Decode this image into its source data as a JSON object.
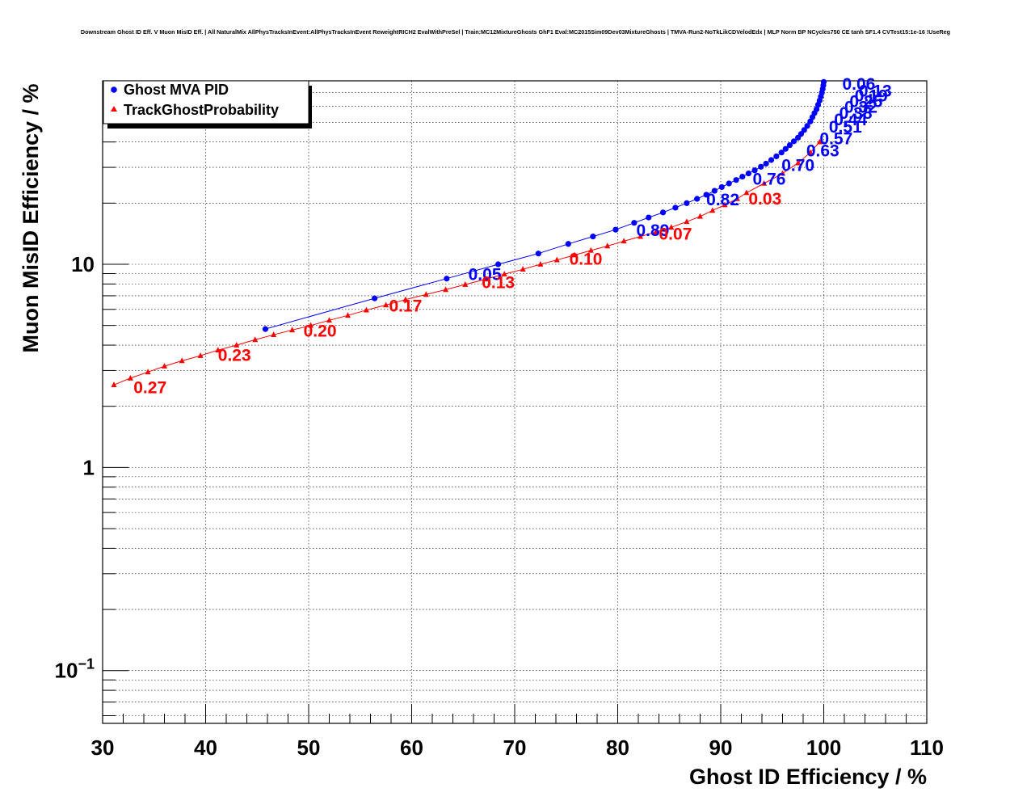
{
  "chart_data": {
    "type": "scatter",
    "title": "Downstream Ghost ID Eff. V Muon MisID Eff. | All NaturalMix AllPhysTracksInEvent:AllPhysTracksInEvent ReweightRICH2 EvalWithPreSel | Train:MC12MixtureGhosts GhF1 Eval:MC2015Sim09Dev03MixtureGhosts | TMVA-Run2-NoTkLikCDVelodEdx | MLP Norm BP NCycles750 CE tanh SF1.4 CVTest15:1e-16 !UseReg",
    "xlabel": "Ghost ID Efficiency / %",
    "ylabel": "Muon MisID Efficiency / %",
    "xlim": [
      30,
      110
    ],
    "ylim": [
      0.055,
      80
    ],
    "yscale": "log",
    "grid": true,
    "legend_position": "top-left",
    "x_ticks": [
      "30",
      "40",
      "50",
      "60",
      "70",
      "80",
      "90",
      "100",
      "110"
    ],
    "y_ticks": [
      {
        "base": "10",
        "exp": "-1",
        "value": 0.1
      },
      {
        "base": "1",
        "exp": "",
        "value": 1
      },
      {
        "base": "10",
        "exp": "",
        "value": 10
      }
    ],
    "series": [
      {
        "name": "Ghost MVA PID",
        "color": "#0000ff",
        "marker": "circle",
        "points": [
          [
            45.8,
            4.8
          ],
          [
            56.4,
            6.8
          ],
          [
            63.4,
            8.5
          ],
          [
            68.4,
            10.0
          ],
          [
            72.3,
            11.3
          ],
          [
            75.2,
            12.6
          ],
          [
            77.6,
            13.7
          ],
          [
            79.8,
            14.8
          ],
          [
            81.6,
            16.0
          ],
          [
            83.0,
            17.0
          ],
          [
            84.4,
            18.0
          ],
          [
            85.6,
            19.0
          ],
          [
            86.7,
            20.0
          ],
          [
            87.7,
            21.0
          ],
          [
            88.6,
            22.0
          ],
          [
            89.4,
            23.0
          ],
          [
            90.1,
            24.0
          ],
          [
            90.8,
            25.0
          ],
          [
            91.5,
            26.0
          ],
          [
            92.1,
            27.0
          ],
          [
            92.7,
            28.0
          ],
          [
            93.3,
            29.0
          ],
          [
            93.9,
            30.2
          ],
          [
            94.4,
            31.3
          ],
          [
            94.9,
            32.6
          ],
          [
            95.4,
            34.0
          ],
          [
            95.9,
            35.5
          ],
          [
            96.3,
            37.0
          ],
          [
            96.7,
            38.6
          ],
          [
            97.1,
            40.3
          ],
          [
            97.5,
            42.0
          ],
          [
            97.8,
            43.8
          ],
          [
            98.1,
            45.8
          ],
          [
            98.4,
            48.0
          ],
          [
            98.7,
            50.5
          ],
          [
            98.9,
            53.0
          ],
          [
            99.1,
            55.5
          ],
          [
            99.3,
            58.0
          ],
          [
            99.45,
            61.0
          ],
          [
            99.6,
            64.0
          ],
          [
            99.72,
            67.0
          ],
          [
            99.82,
            70.0
          ],
          [
            99.9,
            73.0
          ],
          [
            99.96,
            76.0
          ],
          [
            100.0,
            79.0
          ]
        ],
        "labels": [
          {
            "text": "0.05",
            "x": 65.5,
            "y": 9.0
          },
          {
            "text": "0.89",
            "x": 81.8,
            "y": 14.8
          },
          {
            "text": "0.82",
            "x": 88.6,
            "y": 21.0
          },
          {
            "text": "0.76",
            "x": 93.1,
            "y": 26.5
          },
          {
            "text": "0.70",
            "x": 95.9,
            "y": 31.0
          },
          {
            "text": "0.63",
            "x": 98.3,
            "y": 36.5
          },
          {
            "text": "0.57",
            "x": 99.6,
            "y": 42.0
          },
          {
            "text": "0.51",
            "x": 100.5,
            "y": 48.0
          },
          {
            "text": "0.44",
            "x": 101.0,
            "y": 52.0
          },
          {
            "text": "0.38",
            "x": 101.5,
            "y": 56.0
          },
          {
            "text": "0.32",
            "x": 102.0,
            "y": 60.0
          },
          {
            "text": "0.25",
            "x": 102.5,
            "y": 64.0
          },
          {
            "text": "0.19",
            "x": 103.0,
            "y": 68.0
          },
          {
            "text": "0.13",
            "x": 103.4,
            "y": 72.0
          },
          {
            "text": "0.06",
            "x": 101.8,
            "y": 78.0
          }
        ]
      },
      {
        "name": "TrackGhostProbability",
        "color": "#ff0000",
        "marker": "triangle",
        "points": [
          [
            31.1,
            2.55
          ],
          [
            32.7,
            2.75
          ],
          [
            34.4,
            2.95
          ],
          [
            36.0,
            3.15
          ],
          [
            37.7,
            3.35
          ],
          [
            39.5,
            3.55
          ],
          [
            41.2,
            3.78
          ],
          [
            43.0,
            4.0
          ],
          [
            44.8,
            4.25
          ],
          [
            46.6,
            4.5
          ],
          [
            48.4,
            4.75
          ],
          [
            50.2,
            5.0
          ],
          [
            52.0,
            5.3
          ],
          [
            53.8,
            5.6
          ],
          [
            55.6,
            5.95
          ],
          [
            57.5,
            6.3
          ],
          [
            59.4,
            6.7
          ],
          [
            61.4,
            7.1
          ],
          [
            63.3,
            7.5
          ],
          [
            65.2,
            7.95
          ],
          [
            67.2,
            8.45
          ],
          [
            69.0,
            8.95
          ],
          [
            70.8,
            9.45
          ],
          [
            72.5,
            10.0
          ],
          [
            74.1,
            10.5
          ],
          [
            75.8,
            11.1
          ],
          [
            77.4,
            11.7
          ],
          [
            79.0,
            12.3
          ],
          [
            80.6,
            13.0
          ],
          [
            82.2,
            13.7
          ],
          [
            83.7,
            14.4
          ],
          [
            85.2,
            15.2
          ],
          [
            86.7,
            16.2
          ],
          [
            88.0,
            17.2
          ],
          [
            89.2,
            18.4
          ],
          [
            90.4,
            19.6
          ],
          [
            91.6,
            21.0
          ],
          [
            92.5,
            22.5
          ],
          [
            94.2,
            25.0
          ],
          [
            96.0,
            28.0
          ],
          [
            97.5,
            31.5
          ],
          [
            98.7,
            35.5
          ],
          [
            99.6,
            40.0
          ]
        ],
        "labels": [
          {
            "text": "0.27",
            "x": 33.0,
            "y": 2.5
          },
          {
            "text": "0.23",
            "x": 41.2,
            "y": 3.6
          },
          {
            "text": "0.20",
            "x": 49.5,
            "y": 4.75
          },
          {
            "text": "0.17",
            "x": 57.8,
            "y": 6.3
          },
          {
            "text": "0.13",
            "x": 66.8,
            "y": 8.2
          },
          {
            "text": "0.10",
            "x": 75.3,
            "y": 10.7
          },
          {
            "text": "0.07",
            "x": 84.0,
            "y": 14.2
          },
          {
            "text": "0.03",
            "x": 92.7,
            "y": 21.2
          }
        ]
      }
    ]
  }
}
